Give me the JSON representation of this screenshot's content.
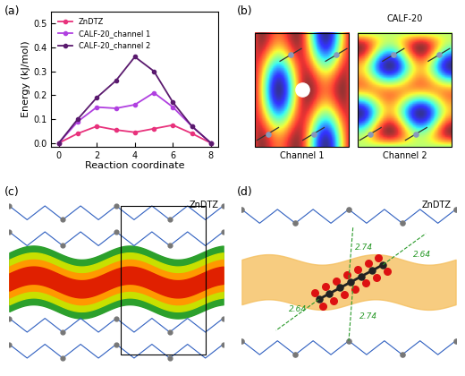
{
  "chart_data": {
    "type": "line",
    "x_label": "Reaction coordinate",
    "y_label": "Energy (kJ/mol)",
    "x": [
      0,
      1,
      2,
      3,
      4,
      5,
      6,
      7,
      8
    ],
    "series": [
      {
        "name": "ZnDTZ",
        "color": "#e8327c",
        "marker": "circle",
        "line_style": "solid",
        "values": [
          0.0,
          0.04,
          0.07,
          0.055,
          0.045,
          0.06,
          0.075,
          0.04,
          0.0
        ]
      },
      {
        "name": "CALF-20_channel 1",
        "color": "#b040e0",
        "marker": "circle",
        "line_style": "solid",
        "values": [
          0.0,
          0.09,
          0.15,
          0.145,
          0.16,
          0.21,
          0.15,
          0.07,
          0.0
        ]
      },
      {
        "name": "CALF-20_channel 2",
        "color": "#5a1a6e",
        "marker": "circle",
        "line_style": "solid",
        "values": [
          0.0,
          0.1,
          0.19,
          0.26,
          0.36,
          0.3,
          0.17,
          0.07,
          0.0
        ]
      }
    ],
    "xlim": [
      -0.4,
      8.4
    ],
    "xticks": [
      0,
      2,
      4,
      6,
      8
    ],
    "ylim": [
      -0.015,
      0.55
    ],
    "yticks": [
      {
        "value": 0.0,
        "label": "0.0"
      },
      {
        "value": 0.1,
        "label": "0.1"
      },
      {
        "value": 0.2,
        "label": "0.2"
      },
      {
        "value": 0.3,
        "label": "0.3"
      },
      {
        "value": 0.4,
        "label": "0.4"
      },
      {
        "value": 0.5,
        "label": "0.5"
      }
    ],
    "legend": "upper left",
    "grid": false
  },
  "panel_labels": [
    "(a)",
    "(b)",
    "(c)",
    "(d)"
  ],
  "panel_b": {
    "title": "CALF-20",
    "channels": [
      "Channel 1",
      "Channel 2"
    ]
  },
  "panel_c": {
    "title": "ZnDTZ"
  },
  "panel_d": {
    "title": "ZnDTZ",
    "distances": [
      2.74,
      2.64,
      2.64,
      2.74
    ]
  }
}
